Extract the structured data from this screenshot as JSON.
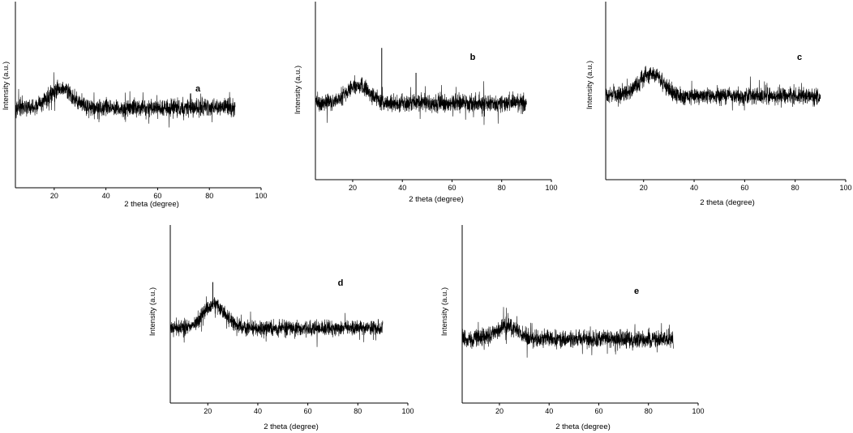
{
  "figure": {
    "colors": {
      "trace": "#000000",
      "axis": "#000000",
      "background": "#ffffff"
    },
    "chart_data": [
      {
        "type": "line",
        "panel_label": "a",
        "xlabel": "2 theta  (degree)",
        "ylabel": "Intensity (a.u.)",
        "xlim": [
          5,
          100
        ],
        "ylim": [
          0,
          100
        ],
        "xticks": [
          20,
          40,
          60,
          80,
          100
        ],
        "x_range_data": [
          5,
          90
        ],
        "y_ticks_shown": false,
        "grid": false,
        "series": [
          {
            "baseline": 43,
            "noise": 4.5,
            "humps": [
              {
                "center": 22.5,
                "width": 4.5,
                "height": 10
              }
            ],
            "peaks": []
          }
        ]
      },
      {
        "type": "line",
        "panel_label": "b",
        "xlabel": "2 theta (degree)",
        "ylabel": "Intensity (a.u.)",
        "xlim": [
          5,
          100
        ],
        "ylim": [
          0,
          100
        ],
        "xticks": [
          20,
          40,
          60,
          80,
          100
        ],
        "x_range_data": [
          5,
          90
        ],
        "y_ticks_shown": false,
        "grid": false,
        "series": [
          {
            "baseline": 43,
            "noise": 4.5,
            "humps": [
              {
                "center": 22,
                "width": 4.5,
                "height": 10
              }
            ],
            "peaks": [
              {
                "x": 31.7,
                "height": 30
              },
              {
                "x": 45.5,
                "height": 17
              }
            ]
          }
        ]
      },
      {
        "type": "line",
        "panel_label": "c",
        "xlabel": "2 theta (degree)",
        "ylabel": "Intensity (a.u.)",
        "xlim": [
          5,
          100
        ],
        "ylim": [
          0,
          100
        ],
        "xticks": [
          20,
          40,
          60,
          80,
          100
        ],
        "x_range_data": [
          5,
          90
        ],
        "y_ticks_shown": false,
        "grid": false,
        "series": [
          {
            "baseline": 47,
            "noise": 4.5,
            "humps": [
              {
                "center": 23,
                "width": 4.5,
                "height": 13
              }
            ],
            "peaks": []
          }
        ]
      },
      {
        "type": "line",
        "panel_label": "d",
        "xlabel": "2 theta (degree)",
        "ylabel": "Intensity (a.u.)",
        "xlim": [
          5,
          100
        ],
        "ylim": [
          0,
          100
        ],
        "xticks": [
          20,
          40,
          60,
          80,
          100
        ],
        "x_range_data": [
          5,
          90
        ],
        "y_ticks_shown": false,
        "grid": false,
        "series": [
          {
            "baseline": 42,
            "noise": 4,
            "humps": [
              {
                "center": 22.5,
                "width": 4.5,
                "height": 13
              }
            ],
            "peaks": [
              {
                "x": 22,
                "height": 13
              }
            ]
          }
        ]
      },
      {
        "type": "line",
        "panel_label": "e",
        "xlabel": "2 theta (degree)",
        "ylabel": "Intensity (a.u.)",
        "xlim": [
          5,
          100
        ],
        "ylim": [
          0,
          100
        ],
        "xticks": [
          20,
          40,
          60,
          80,
          100
        ],
        "x_range_data": [
          5,
          90
        ],
        "y_ticks_shown": false,
        "grid": false,
        "series": [
          {
            "baseline": 36,
            "noise": 4.5,
            "humps": [
              {
                "center": 23,
                "width": 4.5,
                "height": 7
              }
            ],
            "peaks": []
          }
        ]
      }
    ]
  }
}
